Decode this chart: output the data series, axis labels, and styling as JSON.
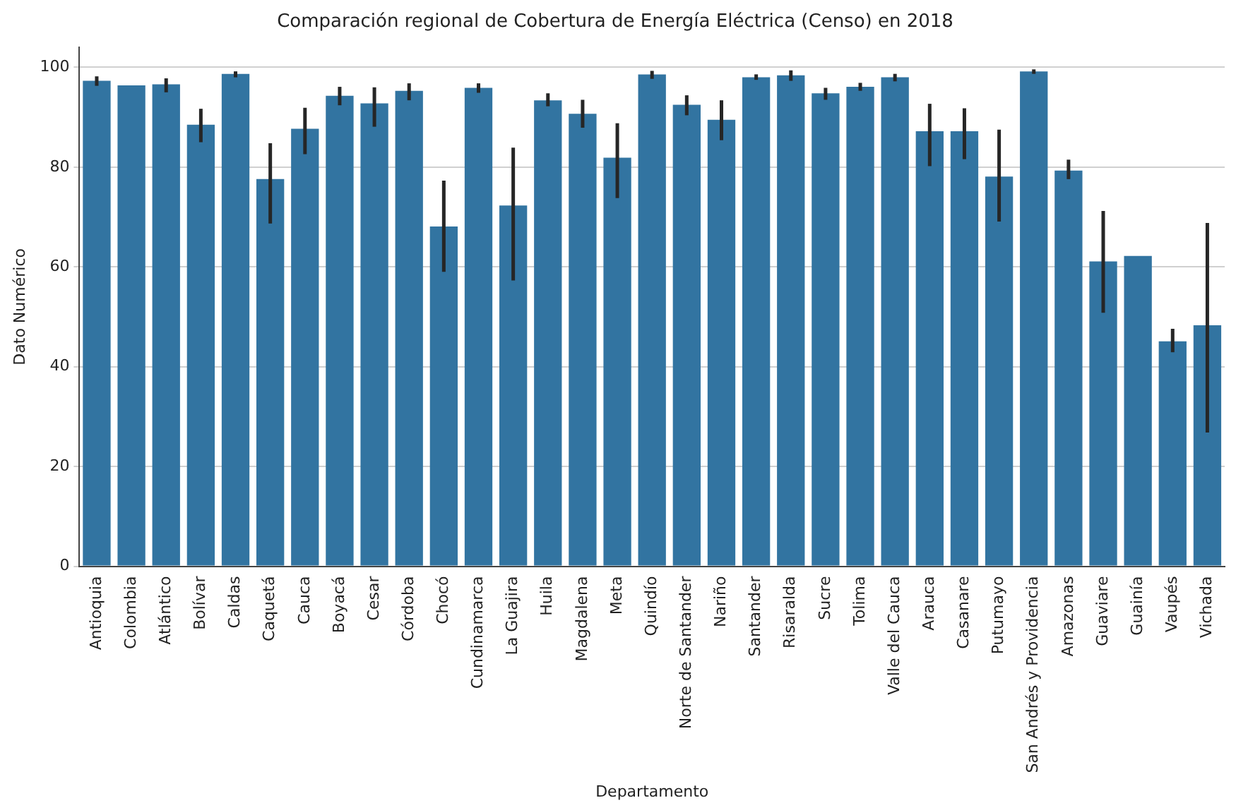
{
  "chart_data": {
    "type": "bar",
    "title": "Comparación regional de Cobertura de Energía Eléctrica (Censo) en 2018",
    "xlabel": "Departamento",
    "ylabel": "Dato Numérico",
    "categories": [
      "Antioquia",
      "Colombia",
      "Atlántico",
      "Bolívar",
      "Caldas",
      "Caquetá",
      "Cauca",
      "Boyacá",
      "Cesar",
      "Córdoba",
      "Chocó",
      "Cundinamarca",
      "La Guajira",
      "Huila",
      "Magdalena",
      "Meta",
      "Quindío",
      "Norte de Santander",
      "Nariño",
      "Santander",
      "Risaralda",
      "Sucre",
      "Tolima",
      "Valle del Cauca",
      "Arauca",
      "Casanare",
      "Putumayo",
      "San Andrés y Providencia",
      "Amazonas",
      "Guaviare",
      "Guainía",
      "Vaupés",
      "Vichada"
    ],
    "values": [
      97.3,
      96.4,
      96.6,
      88.5,
      98.7,
      77.6,
      87.7,
      94.3,
      92.8,
      95.3,
      68.1,
      95.9,
      72.3,
      93.4,
      90.7,
      81.9,
      98.6,
      92.5,
      89.5,
      98.0,
      98.4,
      94.8,
      96.1,
      98.0,
      87.2,
      87.2,
      78.1,
      99.2,
      79.3,
      61.1,
      62.2,
      45.1,
      48.3
    ],
    "errors": [
      [
        96.3,
        98.2
      ],
      null,
      [
        95,
        97.8
      ],
      [
        85,
        91.7
      ],
      [
        98,
        99.2
      ],
      [
        68.7,
        84.8
      ],
      [
        82.6,
        91.9
      ],
      [
        92.4,
        96.1
      ],
      [
        88.1,
        96
      ],
      [
        93.4,
        96.8
      ],
      [
        59,
        77.3
      ],
      [
        94.9,
        96.8
      ],
      [
        57.3,
        83.9
      ],
      [
        92.2,
        94.8
      ],
      [
        87.9,
        93.5
      ],
      [
        73.8,
        88.8
      ],
      [
        97.7,
        99.3
      ],
      [
        90.4,
        94.4
      ],
      [
        85.4,
        93.4
      ],
      [
        97.5,
        98.6
      ],
      [
        97.3,
        99.4
      ],
      [
        93.5,
        95.9
      ],
      [
        95.3,
        96.9
      ],
      [
        97.2,
        98.7
      ],
      [
        80.2,
        92.7
      ],
      [
        81.6,
        91.8
      ],
      [
        69.1,
        87.5
      ],
      [
        98.7,
        99.6
      ],
      [
        77.6,
        81.5
      ],
      [
        50.8,
        71.2
      ],
      null,
      [
        42.9,
        47.6
      ],
      [
        26.8,
        68.8
      ]
    ],
    "color": "#3274a1",
    "ylim": [
      0,
      104
    ],
    "yticks": [
      0,
      20,
      40,
      60,
      80,
      100
    ],
    "grid": "y"
  }
}
